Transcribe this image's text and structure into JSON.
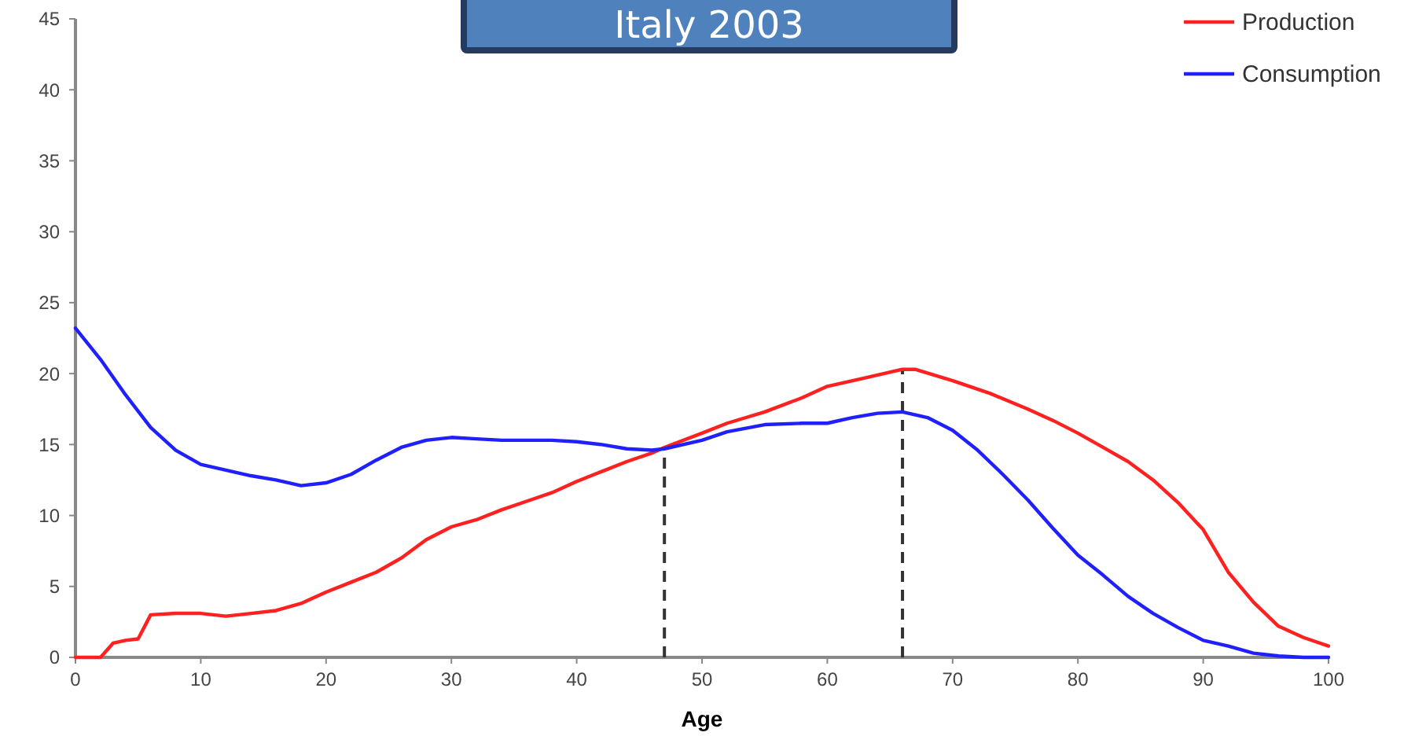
{
  "chart_data": {
    "type": "line",
    "title": "Italy 2003",
    "xlabel": "Age",
    "xlim": [
      0,
      100
    ],
    "xticks": [
      0,
      10,
      20,
      30,
      40,
      50,
      60,
      70,
      80,
      90,
      100
    ],
    "ylim": [
      0,
      45
    ],
    "yticks": [
      0,
      5,
      10,
      15,
      20,
      25,
      30,
      35,
      40,
      45
    ],
    "legend": "top right",
    "grid": false,
    "marker": "none",
    "line_style": "solid",
    "ref_lines": [
      {
        "axis": "x",
        "value": 47,
        "color": "#333333",
        "line_style": "dashed"
      },
      {
        "axis": "x",
        "value": 66,
        "color": "#333333",
        "line_style": "dashed"
      }
    ],
    "series": [
      {
        "name": "Production",
        "color": "#ff2020",
        "x": [
          0,
          2,
          3,
          4,
          5,
          6,
          8,
          10,
          12,
          14,
          16,
          18,
          20,
          22,
          24,
          26,
          28,
          30,
          32,
          34,
          36,
          38,
          40,
          42,
          44,
          46,
          47,
          50,
          52,
          55,
          58,
          60,
          63,
          66,
          67,
          70,
          73,
          76,
          78,
          80,
          82,
          84,
          86,
          88,
          90,
          92,
          94,
          96,
          98,
          100
        ],
        "values": [
          0,
          0,
          1,
          1.2,
          1.3,
          3,
          3.1,
          3.1,
          2.9,
          3.1,
          3.3,
          3.8,
          4.6,
          5.3,
          6,
          7,
          8.3,
          9.2,
          9.7,
          10.4,
          11,
          11.6,
          12.4,
          13.1,
          13.8,
          14.4,
          14.8,
          15.8,
          16.5,
          17.3,
          18.3,
          19.1,
          19.7,
          20.3,
          20.3,
          19.5,
          18.6,
          17.5,
          16.7,
          15.8,
          14.8,
          13.8,
          12.5,
          10.9,
          9,
          6,
          3.9,
          2.2,
          1.4,
          0.8
        ]
      },
      {
        "name": "Consumption",
        "color": "#2020ff",
        "x": [
          0,
          2,
          4,
          6,
          8,
          10,
          12,
          14,
          16,
          18,
          20,
          22,
          24,
          26,
          28,
          30,
          32,
          34,
          36,
          38,
          40,
          42,
          44,
          46,
          47,
          50,
          52,
          55,
          58,
          60,
          62,
          64,
          66,
          68,
          70,
          72,
          74,
          76,
          78,
          80,
          82,
          84,
          86,
          88,
          90,
          92,
          94,
          96,
          98,
          100
        ],
        "values": [
          23.2,
          21,
          18.5,
          16.2,
          14.6,
          13.6,
          13.2,
          12.8,
          12.5,
          12.1,
          12.3,
          12.9,
          13.9,
          14.8,
          15.3,
          15.5,
          15.4,
          15.3,
          15.3,
          15.3,
          15.2,
          15,
          14.7,
          14.6,
          14.7,
          15.3,
          15.9,
          16.4,
          16.5,
          16.5,
          16.9,
          17.2,
          17.3,
          16.9,
          16,
          14.6,
          12.9,
          11.1,
          9.1,
          7.2,
          5.8,
          4.3,
          3.1,
          2.1,
          1.2,
          0.8,
          0.3,
          0.1,
          0,
          0
        ]
      }
    ]
  }
}
